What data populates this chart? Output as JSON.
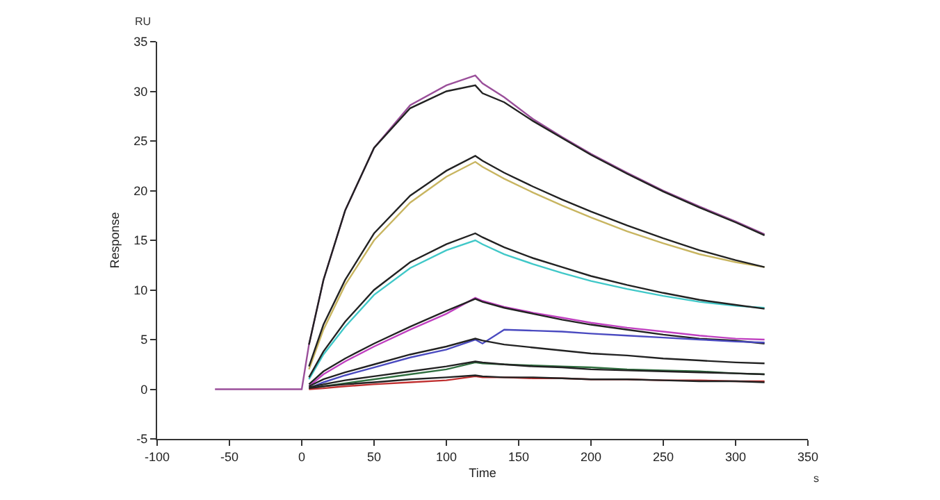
{
  "chart_data": {
    "type": "line",
    "xlabel": "Time",
    "ylabel": "Response",
    "annotations": [
      "RU",
      "s"
    ],
    "x": [
      5,
      15,
      30,
      50,
      75,
      100,
      120,
      125,
      140,
      160,
      180,
      200,
      225,
      250,
      275,
      300,
      320
    ],
    "xlim": [
      -100,
      350
    ],
    "xticks": [
      -100,
      -50,
      0,
      50,
      100,
      150,
      200,
      250,
      300,
      350
    ],
    "ylim": [
      -5,
      35
    ],
    "yticks": [
      -5,
      0,
      5,
      10,
      15,
      20,
      25,
      30,
      35
    ],
    "grid": false,
    "marker": "none",
    "line_style": "solid",
    "series": [
      {
        "color": "#9a4f9a",
        "x": [
          -60,
          -30,
          0,
          5,
          15,
          30,
          50,
          75,
          100,
          120,
          125,
          140,
          160,
          180,
          200,
          225,
          250,
          275,
          300,
          320
        ],
        "values": [
          0,
          0,
          0,
          4.5,
          11,
          18,
          24.3,
          28.6,
          30.6,
          31.6,
          30.8,
          29.4,
          27.2,
          25.4,
          23.7,
          21.8,
          20.0,
          18.4,
          16.9,
          15.6
        ]
      },
      {
        "color": "#222222",
        "values": [
          4.5,
          11,
          18,
          24.3,
          28.3,
          30.0,
          30.6,
          29.8,
          28.9,
          27.0,
          25.3,
          23.6,
          21.7,
          19.9,
          18.3,
          16.8,
          15.5
        ]
      },
      {
        "color": "#c8b560",
        "values": [
          2,
          6,
          10.5,
          15,
          18.8,
          21.4,
          22.9,
          22.4,
          21.2,
          19.8,
          18.5,
          17.3,
          15.9,
          14.7,
          13.6,
          12.8,
          12.3
        ]
      },
      {
        "color": "#222222",
        "values": [
          2.3,
          6.5,
          11,
          15.7,
          19.5,
          22,
          23.5,
          23.0,
          21.8,
          20.4,
          19.1,
          17.9,
          16.5,
          15.2,
          14.0,
          13.0,
          12.3
        ]
      },
      {
        "color": "#40c8c8",
        "values": [
          1,
          3.5,
          6.3,
          9.5,
          12.2,
          14,
          15,
          14.6,
          13.6,
          12.6,
          11.7,
          10.9,
          10.1,
          9.4,
          8.8,
          8.4,
          8.2
        ]
      },
      {
        "color": "#222222",
        "values": [
          1.2,
          3.8,
          6.8,
          10,
          12.8,
          14.6,
          15.7,
          15.3,
          14.3,
          13.2,
          12.3,
          11.4,
          10.5,
          9.7,
          9.0,
          8.5,
          8.1
        ]
      },
      {
        "color": "#c040c0",
        "values": [
          0.3,
          1.5,
          2.8,
          4.3,
          6.0,
          7.6,
          9.2,
          8.9,
          8.3,
          7.7,
          7.2,
          6.7,
          6.2,
          5.8,
          5.4,
          5.1,
          5.0
        ]
      },
      {
        "color": "#222222",
        "values": [
          0.5,
          1.8,
          3.1,
          4.6,
          6.3,
          7.9,
          9.1,
          8.8,
          8.2,
          7.6,
          7.0,
          6.5,
          6.0,
          5.5,
          5.1,
          4.9,
          4.6
        ]
      },
      {
        "color": "#4a4ac0",
        "values": [
          0.1,
          0.7,
          1.4,
          2.2,
          3.2,
          4.0,
          5.0,
          4.6,
          6.0,
          5.9,
          5.8,
          5.6,
          5.4,
          5.2,
          5.0,
          4.8,
          4.7
        ]
      },
      {
        "color": "#222222",
        "values": [
          0.3,
          1,
          1.7,
          2.5,
          3.5,
          4.3,
          5.1,
          4.9,
          4.5,
          4.2,
          3.9,
          3.6,
          3.4,
          3.1,
          2.9,
          2.7,
          2.6
        ]
      },
      {
        "color": "#2f6f3f",
        "values": [
          0.1,
          0.3,
          0.6,
          1.0,
          1.5,
          2.0,
          2.7,
          2.6,
          2.5,
          2.4,
          2.3,
          2.2,
          2.0,
          1.9,
          1.8,
          1.6,
          1.5
        ]
      },
      {
        "color": "#222222",
        "values": [
          0.2,
          0.5,
          0.9,
          1.3,
          1.8,
          2.3,
          2.8,
          2.7,
          2.5,
          2.3,
          2.2,
          2.0,
          1.9,
          1.8,
          1.7,
          1.6,
          1.5
        ]
      },
      {
        "color": "#c03030",
        "values": [
          0,
          0.1,
          0.3,
          0.5,
          0.7,
          0.9,
          1.3,
          1.2,
          1.2,
          1.1,
          1.1,
          1.0,
          1.0,
          0.9,
          0.9,
          0.8,
          0.8
        ]
      },
      {
        "color": "#222222",
        "values": [
          0.1,
          0.3,
          0.5,
          0.7,
          1.0,
          1.2,
          1.4,
          1.3,
          1.2,
          1.2,
          1.1,
          1.0,
          1.0,
          0.9,
          0.8,
          0.8,
          0.7
        ]
      }
    ]
  }
}
